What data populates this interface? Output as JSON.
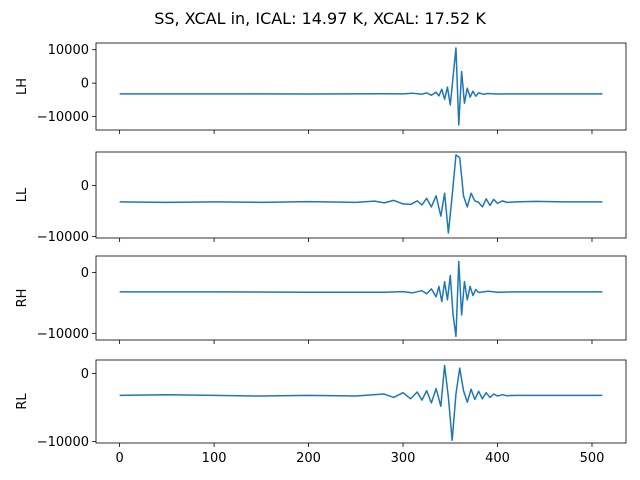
{
  "figure": {
    "title": "SS, XCAL in, ICAL: 14.97 K, XCAL: 17.52 K"
  },
  "colors": {
    "line": "#1f77b4",
    "axes": "#000000",
    "background": "#ffffff"
  },
  "chart_data": [
    {
      "type": "line",
      "ylabel": "LH",
      "xlim": [
        -25,
        536
      ],
      "ylim": [
        -14000,
        12000
      ],
      "yticks": [
        10000,
        0,
        -10000
      ],
      "ytick_labels": [
        "10000",
        "0",
        "−10000"
      ],
      "xticks": [
        0,
        100,
        200,
        300,
        400,
        500
      ],
      "xtick_labels": [],
      "grid": false,
      "series": [
        {
          "x": [
            0,
            100,
            200,
            280,
            300,
            310,
            320,
            325,
            330,
            335,
            338,
            341,
            344,
            347,
            350,
            353,
            356,
            359,
            362,
            365,
            368,
            371,
            374,
            377,
            380,
            385,
            390,
            400,
            420,
            450,
            511
          ],
          "y": [
            -3200,
            -3200,
            -3250,
            -3150,
            -3200,
            -3000,
            -3300,
            -2900,
            -3600,
            -2700,
            -3800,
            -1800,
            -4800,
            -1200,
            -6500,
            2000,
            10500,
            -12500,
            3500,
            -6000,
            -1500,
            -4200,
            -2400,
            -3900,
            -2900,
            -3300,
            -3100,
            -3250,
            -3200,
            -3200,
            -3200
          ]
        }
      ]
    },
    {
      "type": "line",
      "ylabel": "LL",
      "xlim": [
        -25,
        536
      ],
      "ylim": [
        -10300,
        6600
      ],
      "yticks": [
        0,
        -10000
      ],
      "ytick_labels": [
        "0",
        "−10000"
      ],
      "xticks": [
        0,
        100,
        200,
        300,
        400,
        500
      ],
      "xtick_labels": [],
      "grid": false,
      "series": [
        {
          "x": [
            0,
            50,
            100,
            150,
            200,
            250,
            270,
            280,
            290,
            300,
            308,
            315,
            320,
            325,
            330,
            335,
            340,
            344,
            348,
            352,
            356,
            360,
            364,
            368,
            372,
            376,
            380,
            384,
            388,
            392,
            396,
            400,
            405,
            410,
            420,
            440,
            470,
            511
          ],
          "y": [
            -3200,
            -3300,
            -3200,
            -3300,
            -3150,
            -3300,
            -3050,
            -3400,
            -2900,
            -3600,
            -3700,
            -3000,
            -3800,
            -2500,
            -4200,
            -2000,
            -6000,
            -1500,
            -9300,
            -2000,
            6000,
            5500,
            -2000,
            -4200,
            -1500,
            -3000,
            -3300,
            -4200,
            -2600,
            -3900,
            -2700,
            -3500,
            -3000,
            -3300,
            -3200,
            -3100,
            -3200,
            -3200
          ]
        }
      ]
    },
    {
      "type": "line",
      "ylabel": "RH",
      "xlim": [
        -25,
        536
      ],
      "ylim": [
        -11100,
        2700
      ],
      "yticks": [
        0,
        -10000
      ],
      "ytick_labels": [
        "0",
        "−10000"
      ],
      "xticks": [
        0,
        100,
        200,
        300,
        400,
        500
      ],
      "xtick_labels": [],
      "grid": false,
      "series": [
        {
          "x": [
            0,
            100,
            200,
            280,
            300,
            310,
            320,
            325,
            330,
            335,
            338,
            341,
            344,
            347,
            350,
            353,
            356,
            359,
            362,
            365,
            368,
            371,
            374,
            377,
            380,
            390,
            400,
            420,
            450,
            511
          ],
          "y": [
            -3200,
            -3200,
            -3250,
            -3250,
            -3150,
            -3350,
            -3000,
            -3500,
            -2700,
            -4000,
            -2300,
            -4800,
            -1500,
            -4500,
            -500,
            -7000,
            -10500,
            1800,
            -7000,
            -1500,
            -4500,
            -2300,
            -3800,
            -2800,
            -3300,
            -3100,
            -3250,
            -3200,
            -3200,
            -3200
          ]
        }
      ]
    },
    {
      "type": "line",
      "ylabel": "RL",
      "xlim": [
        -25,
        536
      ],
      "ylim": [
        -10200,
        2000
      ],
      "yticks": [
        0,
        -10000
      ],
      "ytick_labels": [
        "0",
        "−10000"
      ],
      "xticks": [
        0,
        100,
        200,
        300,
        400,
        500
      ],
      "xtick_labels": [
        "0",
        "100",
        "200",
        "300",
        "400",
        "500"
      ],
      "grid": false,
      "series": [
        {
          "x": [
            0,
            50,
            100,
            150,
            200,
            250,
            280,
            290,
            300,
            308,
            315,
            320,
            325,
            330,
            335,
            340,
            344,
            348,
            352,
            356,
            360,
            364,
            368,
            372,
            376,
            380,
            384,
            388,
            392,
            396,
            400,
            405,
            410,
            420,
            440,
            470,
            511
          ],
          "y": [
            -3200,
            -3100,
            -3200,
            -3300,
            -3200,
            -3300,
            -3000,
            -3500,
            -2800,
            -3700,
            -2700,
            -3900,
            -2500,
            -4300,
            -2200,
            -4800,
            1200,
            -3500,
            -9800,
            -3000,
            800,
            -2500,
            -4200,
            -2300,
            -3800,
            -2600,
            -3700,
            -2800,
            -3500,
            -3000,
            -3300,
            -3100,
            -3250,
            -3200,
            -3200,
            -3200,
            -3200
          ]
        }
      ]
    }
  ]
}
